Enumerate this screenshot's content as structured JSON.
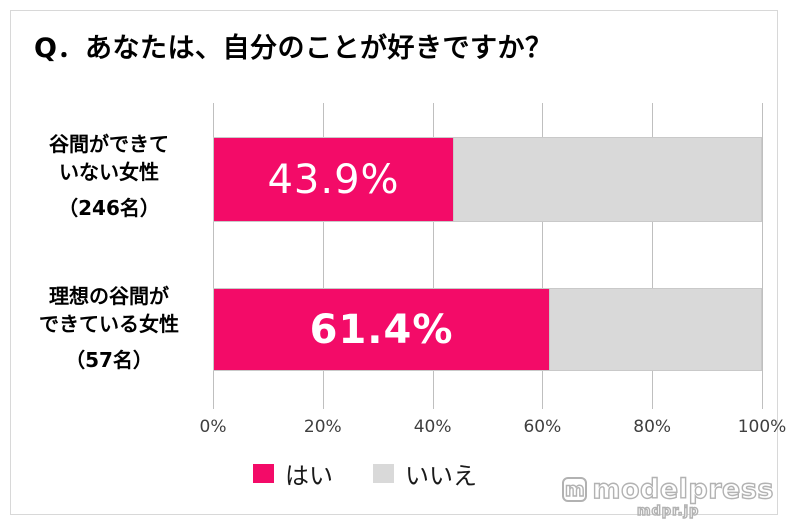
{
  "title": "Q．あなたは、自分のことが好きですか？",
  "chart_data": {
    "type": "bar",
    "orientation": "horizontal",
    "stacked": true,
    "title": "Q．あなたは、自分のことが好きですか？",
    "categories": [
      {
        "lines": [
          "谷間ができて",
          "いない女性",
          "（246名）"
        ]
      },
      {
        "lines": [
          "理想の谷間が",
          "できている女性",
          "（57名）"
        ]
      }
    ],
    "series": [
      {
        "name": "はい",
        "color": "#F30B68",
        "values": [
          43.9,
          61.4
        ]
      },
      {
        "name": "いいえ",
        "color": "#D9D9D9",
        "values": [
          56.1,
          38.6
        ]
      }
    ],
    "data_labels": [
      "43.9%",
      "61.4%"
    ],
    "x_ticks": [
      "0%",
      "20%",
      "40%",
      "60%",
      "80%",
      "100%"
    ],
    "xlim": [
      0,
      100
    ],
    "grid": true,
    "gridline_color": "#BFBFBF",
    "legend_position": "bottom"
  },
  "legend": {
    "items": [
      {
        "label": "はい",
        "color": "#F30B68"
      },
      {
        "label": "いいえ",
        "color": "#D9D9D9"
      }
    ]
  },
  "watermark": {
    "logo_letter": "m",
    "brand": "modelpress",
    "domain": "mdpr.jp"
  }
}
